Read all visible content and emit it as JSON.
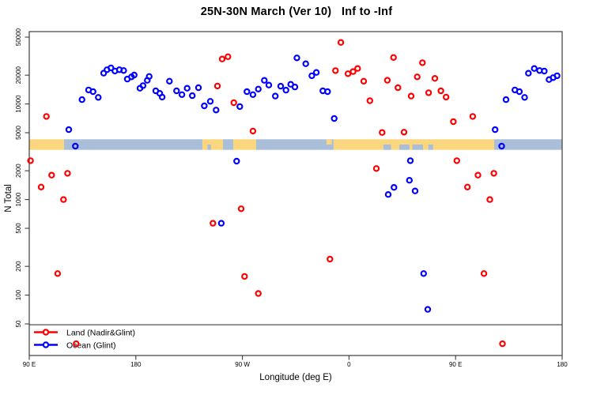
{
  "title": "25N-30N March (Ver 10)   Inf to -Inf",
  "x_axis": {
    "label": "Longitude (deg E)",
    "ticks": [
      {
        "value": 90,
        "label": "90 E"
      },
      {
        "value": 180,
        "label": "180"
      },
      {
        "value": 270,
        "label": "90 W"
      },
      {
        "value": 360,
        "label": "0"
      },
      {
        "value": 450,
        "label": "90 E"
      },
      {
        "value": 540,
        "label": "180"
      }
    ]
  },
  "y_axis": {
    "label": "N Total",
    "ticks": [
      "50",
      "100",
      "200",
      "500",
      "1000",
      "2000",
      "5000",
      "10000",
      "20000",
      "50000"
    ]
  },
  "legend": {
    "items": [
      {
        "label": "Land (Nadir&Glint)",
        "color": "#ff0000"
      },
      {
        "label": "Ocean (Glint)",
        "color": "#0000ff"
      }
    ]
  },
  "colors": {
    "land_band": "#fad77e",
    "ocean_band": "#a9bed8",
    "axis": "#3c3c3c",
    "text": "#000000"
  },
  "chart_data": {
    "type": "scatter",
    "title": "25N-30N March (Ver 10)   Inf to -Inf",
    "xlabel": "Longitude (deg E)",
    "ylabel": "N Total",
    "x_range": [
      90,
      540
    ],
    "y_log_anchor": [
      50,
      50000
    ],
    "y_scale": "log",
    "grid": false,
    "reference_line_y": 49,
    "marker": {
      "shape": "open-circle",
      "radius": 3.1,
      "stroke_width": 2.2
    },
    "series": [
      {
        "name": "Land (Nadir&Glint)",
        "color": "#ff0000",
        "points": [
          [
            104.5,
            7400
          ],
          [
            91.1,
            2550
          ],
          [
            108.9,
            1800
          ],
          [
            122.3,
            1880
          ],
          [
            100,
            1350
          ],
          [
            118.9,
            1000
          ],
          [
            114,
            168
          ],
          [
            129.6,
            31
          ],
          [
            252.9,
            29500
          ],
          [
            257.8,
            31200
          ],
          [
            248.9,
            15400
          ],
          [
            262.7,
            10300
          ],
          [
            278.9,
            5200
          ],
          [
            268.9,
            800
          ],
          [
            245.1,
            565
          ],
          [
            343.9,
            238
          ],
          [
            271.8,
            157
          ],
          [
            283.4,
            104
          ],
          [
            353.1,
            44000
          ],
          [
            397.6,
            30600
          ],
          [
            422,
            27000
          ],
          [
            348.6,
            22300
          ],
          [
            359.1,
            20700
          ],
          [
            363.5,
            21800
          ],
          [
            367.3,
            23500
          ],
          [
            372.4,
            17300
          ],
          [
            392.4,
            17700
          ],
          [
            401.3,
            14800
          ],
          [
            417.6,
            19200
          ],
          [
            412.5,
            12100
          ],
          [
            377.6,
            10800
          ],
          [
            427.2,
            13100
          ],
          [
            388,
            5030
          ],
          [
            406.5,
            5070
          ],
          [
            383.1,
            2110
          ],
          [
            432.5,
            18500
          ],
          [
            437.6,
            13700
          ],
          [
            442,
            11800
          ],
          [
            448.1,
            6530
          ],
          [
            464.5,
            7400
          ],
          [
            451.1,
            2550
          ],
          [
            468.9,
            1800
          ],
          [
            482.3,
            1880
          ],
          [
            460,
            1350
          ],
          [
            478.9,
            1000
          ],
          [
            474,
            168
          ],
          [
            489.6,
            31
          ]
        ]
      },
      {
        "name": "Ocean (Glint)",
        "color": "#0000ff",
        "points": [
          [
            123.4,
            5390
          ],
          [
            128.9,
            3620
          ],
          [
            134.5,
            11100
          ],
          [
            140.1,
            14000
          ],
          [
            143.9,
            13450
          ],
          [
            148.3,
            11700
          ],
          [
            152.8,
            21000
          ],
          [
            155.6,
            22800
          ],
          [
            159,
            23800
          ],
          [
            162.3,
            22100
          ],
          [
            166.1,
            22800
          ],
          [
            169.7,
            22350
          ],
          [
            172.8,
            18200
          ],
          [
            176.3,
            19200
          ],
          [
            178.6,
            20050
          ],
          [
            183.5,
            14600
          ],
          [
            186.1,
            15550
          ],
          [
            189.7,
            17650
          ],
          [
            191.3,
            19400
          ],
          [
            196.8,
            13700
          ],
          [
            200.2,
            12900
          ],
          [
            202.2,
            11800
          ],
          [
            208.4,
            17300
          ],
          [
            214.4,
            13700
          ],
          [
            218.9,
            12500
          ],
          [
            223.3,
            14600
          ],
          [
            227.7,
            12200
          ],
          [
            232.9,
            14800
          ],
          [
            237.8,
            9550
          ],
          [
            242.9,
            10650
          ],
          [
            247.8,
            8630
          ],
          [
            265.1,
            2520
          ],
          [
            252.2,
            565
          ],
          [
            267.8,
            9380
          ],
          [
            273.8,
            13450
          ],
          [
            278.9,
            12500
          ],
          [
            283.4,
            14300
          ],
          [
            288.5,
            17650
          ],
          [
            292.3,
            15750
          ],
          [
            297.8,
            12100
          ],
          [
            302.3,
            15350
          ],
          [
            306.8,
            13950
          ],
          [
            310.8,
            16050
          ],
          [
            314.3,
            15050
          ],
          [
            316,
            30300
          ],
          [
            323.5,
            26350
          ],
          [
            328.6,
            19700
          ],
          [
            332.4,
            21350
          ],
          [
            337.9,
            13700
          ],
          [
            341.9,
            13450
          ],
          [
            347.5,
            7040
          ],
          [
            393.1,
            1130
          ],
          [
            398,
            1340
          ],
          [
            411.8,
            2550
          ],
          [
            411,
            1590
          ],
          [
            415.8,
            1230
          ],
          [
            423,
            168
          ],
          [
            426.5,
            71
          ],
          [
            483.4,
            5390
          ],
          [
            488.9,
            3620
          ],
          [
            492.6,
            11100
          ],
          [
            500.1,
            14000
          ],
          [
            503.9,
            13450
          ],
          [
            508.3,
            11700
          ],
          [
            511.5,
            20950
          ],
          [
            516.4,
            23500
          ],
          [
            520.9,
            22350
          ],
          [
            524.9,
            22050
          ],
          [
            528.9,
            18000
          ],
          [
            532.4,
            18850
          ],
          [
            535.7,
            19700
          ]
        ]
      }
    ],
    "surface_band": {
      "top_value": 4270,
      "bottom_value": 3310,
      "segments": [
        {
          "from": 90,
          "to": 119.4,
          "surface": "land"
        },
        {
          "from": 119.4,
          "to": 236.2,
          "surface": "ocean"
        },
        {
          "from": 236.2,
          "to": 253.6,
          "surface": "land"
        },
        {
          "from": 253.6,
          "to": 262.3,
          "surface": "ocean"
        },
        {
          "from": 262.3,
          "to": 281.6,
          "surface": "land"
        },
        {
          "from": 281.6,
          "to": 347,
          "surface": "ocean"
        },
        {
          "from": 347,
          "to": 482.6,
          "surface": "land"
        },
        {
          "from": 482.6,
          "to": 540,
          "surface": "ocean"
        }
      ],
      "detail_marks": [
        {
          "from": 240.5,
          "to": 243.5,
          "surface": "ocean",
          "edge": "bottom"
        },
        {
          "from": 341,
          "to": 345.5,
          "surface": "land",
          "edge": "top"
        },
        {
          "from": 389,
          "to": 395.5,
          "surface": "ocean",
          "edge": "bottom"
        },
        {
          "from": 402.5,
          "to": 411,
          "surface": "ocean",
          "edge": "bottom"
        },
        {
          "from": 413.5,
          "to": 422.5,
          "surface": "ocean",
          "edge": "bottom"
        },
        {
          "from": 427,
          "to": 431,
          "surface": "ocean",
          "edge": "bottom"
        }
      ]
    }
  }
}
